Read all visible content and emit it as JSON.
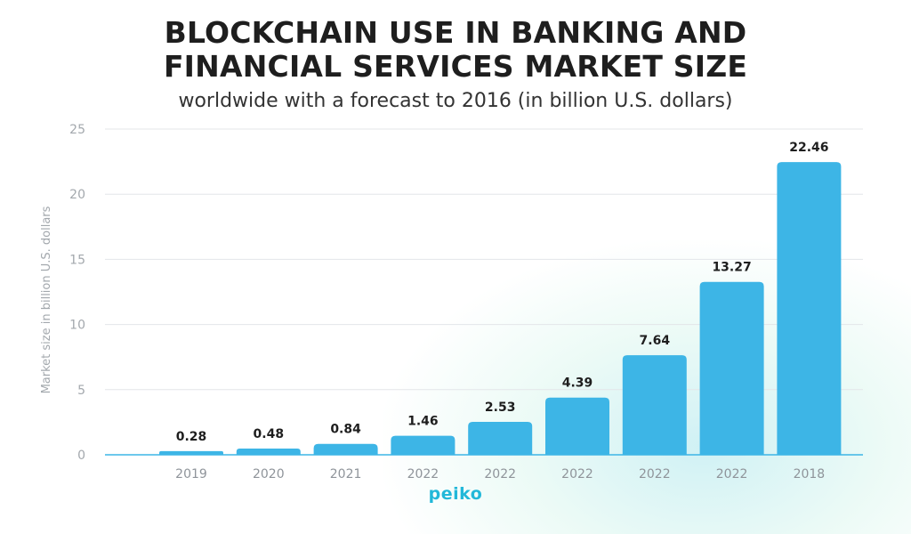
{
  "header": {
    "title_line1": "BLOCKCHAIN USE IN BANKING AND",
    "title_line2": "FINANCIAL SERVICES MARKET SIZE",
    "subtitle": "worldwide with a forecast to 2016 (in billion U.S. dollars)"
  },
  "branding": {
    "logo_text": "peiko"
  },
  "colors": {
    "bar": "#3db5e6",
    "title": "#1e1e1e",
    "logo": "#22b8d9"
  },
  "chart_data": {
    "type": "bar",
    "categories": [
      "2019",
      "2020",
      "2021",
      "2022",
      "2022",
      "2022",
      "2022",
      "2022",
      "2018"
    ],
    "values": [
      0.28,
      0.48,
      0.84,
      1.46,
      2.53,
      4.39,
      7.64,
      13.27,
      22.46
    ],
    "data_labels": [
      "0.28",
      "0.48",
      "0.84",
      "1.46",
      "2.53",
      "4.39",
      "7.64",
      "13.27",
      "22.46"
    ],
    "ylabel": "Market size in billion U.S. dollars",
    "ylim": [
      0,
      25
    ],
    "yticks": [
      0,
      5,
      10,
      15,
      20,
      25
    ],
    "ytick_labels": [
      "0",
      "5",
      "10",
      "15",
      "20",
      "25"
    ],
    "grid": true,
    "legend": "none"
  }
}
